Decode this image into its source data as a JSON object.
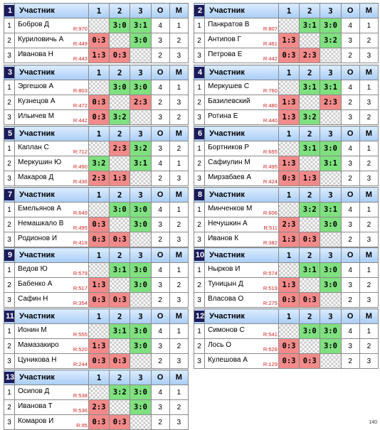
{
  "header": {
    "name_col": "Участник",
    "cols": [
      "1",
      "2",
      "3"
    ],
    "points_col": "O",
    "place_col": "M"
  },
  "footer": "140",
  "groups": [
    {
      "number": "1",
      "rows": [
        {
          "idx": "1",
          "name": "Бобров Д",
          "rating": "R:970",
          "c": [
            "",
            "3:0",
            "3:1"
          ],
          "o": "4",
          "m": "1"
        },
        {
          "idx": "2",
          "name": "Куриловичь А",
          "rating": "R:449",
          "c": [
            "0:3",
            "",
            "3:0"
          ],
          "o": "3",
          "m": "2"
        },
        {
          "idx": "3",
          "name": "Иванова Н",
          "rating": "R:443",
          "c": [
            "1:3",
            "0:3",
            ""
          ],
          "o": "2",
          "m": "3"
        }
      ]
    },
    {
      "number": "2",
      "rows": [
        {
          "idx": "1",
          "name": "Панкратов В",
          "rating": "R:807",
          "c": [
            "",
            "3:1",
            "3:0"
          ],
          "o": "4",
          "m": "1"
        },
        {
          "idx": "2",
          "name": "Антипов Г",
          "rating": "R:461",
          "c": [
            "1:3",
            "",
            "3:2"
          ],
          "o": "3",
          "m": "2"
        },
        {
          "idx": "3",
          "name": "Петрова Е",
          "rating": "R:442",
          "c": [
            "0:3",
            "2:3",
            ""
          ],
          "o": "2",
          "m": "3"
        }
      ]
    },
    {
      "number": "3",
      "rows": [
        {
          "idx": "1",
          "name": "Эргешов А",
          "rating": "R:803",
          "c": [
            "",
            "3:0",
            "3:0"
          ],
          "o": "4",
          "m": "1"
        },
        {
          "idx": "2",
          "name": "Кузнецов А",
          "rating": "R:472",
          "c": [
            "0:3",
            "",
            "2:3"
          ],
          "o": "2",
          "m": "3"
        },
        {
          "idx": "3",
          "name": "Ильичев М",
          "rating": "R:442",
          "c": [
            "0:3",
            "3:2",
            ""
          ],
          "o": "3",
          "m": "2"
        }
      ]
    },
    {
      "number": "4",
      "rows": [
        {
          "idx": "1",
          "name": "Меркушев С",
          "rating": "R:760",
          "c": [
            "",
            "3:1",
            "3:1"
          ],
          "o": "4",
          "m": "1"
        },
        {
          "idx": "2",
          "name": "Базилевский",
          "rating": "R:480",
          "c": [
            "1:3",
            "",
            "2:3"
          ],
          "o": "2",
          "m": "3"
        },
        {
          "idx": "3",
          "name": "Ротина Е",
          "rating": "R:440",
          "c": [
            "1:3",
            "3:2",
            ""
          ],
          "o": "3",
          "m": "2"
        }
      ]
    },
    {
      "number": "5",
      "rows": [
        {
          "idx": "1",
          "name": "Каплан С",
          "rating": "R:712",
          "c": [
            "",
            "2:3",
            "3:2"
          ],
          "o": "3",
          "m": "2"
        },
        {
          "idx": "2",
          "name": "Меркушин Ю",
          "rating": "R:490",
          "c": [
            "3:2",
            "",
            "3:1"
          ],
          "o": "4",
          "m": "1"
        },
        {
          "idx": "3",
          "name": "Макаров Д",
          "rating": "R:436",
          "c": [
            "2:3",
            "1:3",
            ""
          ],
          "o": "2",
          "m": "3"
        }
      ]
    },
    {
      "number": "6",
      "rows": [
        {
          "idx": "1",
          "name": "Бортников Р",
          "rating": "R:655",
          "c": [
            "",
            "3:1",
            "3:0"
          ],
          "o": "4",
          "m": "1"
        },
        {
          "idx": "2",
          "name": "Сафиулин М",
          "rating": "R:495",
          "c": [
            "1:3",
            "",
            "3:1"
          ],
          "o": "3",
          "m": "2"
        },
        {
          "idx": "3",
          "name": "Мирзабаев А",
          "rating": "R:424",
          "c": [
            "0:3",
            "1:3",
            ""
          ],
          "o": "2",
          "m": "3"
        }
      ]
    },
    {
      "number": "7",
      "rows": [
        {
          "idx": "1",
          "name": "Емельянов А",
          "rating": "R:649",
          "c": [
            "",
            "3:0",
            "3:0"
          ],
          "o": "4",
          "m": "1"
        },
        {
          "idx": "2",
          "name": "Немашкало В",
          "rating": "R:495",
          "c": [
            "0:3",
            "",
            "3:0"
          ],
          "o": "3",
          "m": "2"
        },
        {
          "idx": "3",
          "name": "Родионов И",
          "rating": "R:418",
          "c": [
            "0:3",
            "0:3",
            ""
          ],
          "o": "2",
          "m": "3"
        }
      ]
    },
    {
      "number": "8",
      "rows": [
        {
          "idx": "1",
          "name": "Минченков М",
          "rating": "R:606",
          "c": [
            "",
            "3:2",
            "3:1"
          ],
          "o": "4",
          "m": "1"
        },
        {
          "idx": "2",
          "name": "Нечушкин А",
          "rating": "R:511",
          "c": [
            "2:3",
            "",
            "3:0"
          ],
          "o": "3",
          "m": "2"
        },
        {
          "idx": "3",
          "name": "Иванов К",
          "rating": "R:382",
          "c": [
            "1:3",
            "0:3",
            ""
          ],
          "o": "2",
          "m": "3"
        }
      ]
    },
    {
      "number": "9",
      "rows": [
        {
          "idx": "1",
          "name": "Ведов Ю",
          "rating": "R:579",
          "c": [
            "",
            "3:1",
            "3:0"
          ],
          "o": "4",
          "m": "1"
        },
        {
          "idx": "2",
          "name": "Бабенко А",
          "rating": "R:517",
          "c": [
            "1:3",
            "",
            "3:0"
          ],
          "o": "3",
          "m": "2"
        },
        {
          "idx": "3",
          "name": "Сафин Н",
          "rating": "R:354",
          "c": [
            "0:3",
            "0:3",
            ""
          ],
          "o": "2",
          "m": "3"
        }
      ]
    },
    {
      "number": "10",
      "rows": [
        {
          "idx": "1",
          "name": "Нырков И",
          "rating": "R:574",
          "c": [
            "",
            "3:1",
            "3:0"
          ],
          "o": "4",
          "m": "1"
        },
        {
          "idx": "2",
          "name": "Туницын Д",
          "rating": "R:519",
          "c": [
            "1:3",
            "",
            "3:0"
          ],
          "o": "3",
          "m": "2"
        },
        {
          "idx": "3",
          "name": "Власова О",
          "rating": "R:275",
          "c": [
            "0:3",
            "0:3",
            ""
          ],
          "o": "2",
          "m": "3"
        }
      ]
    },
    {
      "number": "11",
      "rows": [
        {
          "idx": "1",
          "name": "Ионин М",
          "rating": "R:555",
          "c": [
            "",
            "3:1",
            "3:0"
          ],
          "o": "4",
          "m": "1"
        },
        {
          "idx": "2",
          "name": "Мамазакиро",
          "rating": "R:520",
          "c": [
            "1:3",
            "",
            "3:0"
          ],
          "o": "3",
          "m": "2"
        },
        {
          "idx": "3",
          "name": "Цуникова Н",
          "rating": "R:244",
          "c": [
            "0:3",
            "0:3",
            ""
          ],
          "o": "2",
          "m": "3"
        }
      ]
    },
    {
      "number": "12",
      "rows": [
        {
          "idx": "1",
          "name": "Симонов С",
          "rating": "R:541",
          "c": [
            "",
            "3:0",
            "3:0"
          ],
          "o": "4",
          "m": "1"
        },
        {
          "idx": "2",
          "name": "Лось О",
          "rating": "R:528",
          "c": [
            "0:3",
            "",
            "3:0"
          ],
          "o": "3",
          "m": "2"
        },
        {
          "idx": "3",
          "name": "Кулешова А",
          "rating": "R:129",
          "c": [
            "0:3",
            "0:3",
            ""
          ],
          "o": "2",
          "m": "3"
        }
      ]
    },
    {
      "number": "13",
      "rows": [
        {
          "idx": "1",
          "name": "Осипов Д",
          "rating": "R:538",
          "c": [
            "",
            "3:2",
            "3:0"
          ],
          "o": "4",
          "m": "1"
        },
        {
          "idx": "2",
          "name": "Иванова Т",
          "rating": "R:536",
          "c": [
            "2:3",
            "",
            "3:0"
          ],
          "o": "3",
          "m": "2"
        },
        {
          "idx": "3",
          "name": "Комаров И",
          "rating": "R:95",
          "c": [
            "0:3",
            "0:3",
            ""
          ],
          "o": "2",
          "m": "3"
        }
      ]
    }
  ]
}
